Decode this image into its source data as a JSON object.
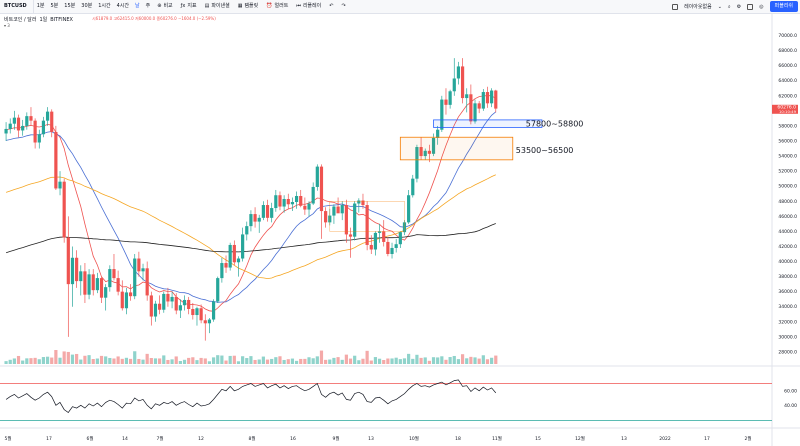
{
  "topbar": {
    "symbol": "BTCUSD",
    "timeframes": [
      "1분",
      "5분",
      "15분",
      "30분",
      "1시간",
      "4시간",
      "날",
      "주"
    ],
    "active_timeframe": "날",
    "tools": [
      "비교",
      "지표",
      "파이낸셜",
      "템플릿",
      "얼러트",
      "리플레이"
    ],
    "layout_name": "레이아웃없음",
    "publish": "퍼블리쉬"
  },
  "legend": {
    "title": "비트코인 / 달러",
    "interval": "1일",
    "exchange": "BITFINEX",
    "ohlc": "시61879.0 고62415.0 저60000.0 종60276.0 −1604.0 (−2.59%)",
    "indicator_count": "3"
  },
  "chart_data": {
    "type": "candlestick",
    "symbol": "BTCUSD",
    "last_price": "60276.0",
    "last_time": "10:10:49",
    "y_ticks": [
      70000,
      68000,
      66000,
      64000,
      62000,
      60000,
      58000,
      56000,
      54000,
      52000,
      50000,
      48000,
      46000,
      44000,
      42000,
      40000,
      38000,
      36000,
      34000,
      32000,
      30000,
      28000
    ],
    "x_ticks": [
      "5월",
      "17",
      "6월",
      "14",
      "7월",
      "12",
      "8월",
      "16",
      "9월",
      "13",
      "10월",
      "18",
      "11월",
      "15",
      "12월",
      "13",
      "2022",
      "17",
      "2월"
    ],
    "candles": [
      [
        57000,
        58500,
        56000,
        57600
      ],
      [
        57600,
        59000,
        57000,
        58300
      ],
      [
        58300,
        60000,
        57500,
        59100
      ],
      [
        59100,
        59500,
        56500,
        57400
      ],
      [
        57400,
        58800,
        56700,
        58000
      ],
      [
        58000,
        59800,
        57500,
        59300
      ],
      [
        59300,
        60500,
        58000,
        58700
      ],
      [
        58700,
        59000,
        55000,
        55800
      ],
      [
        55800,
        57500,
        55000,
        56900
      ],
      [
        56900,
        59200,
        56500,
        58700
      ],
      [
        58700,
        60500,
        58000,
        59900
      ],
      [
        59900,
        60200,
        56500,
        57200
      ],
      [
        57200,
        58000,
        49500,
        49700
      ],
      [
        49700,
        52000,
        48800,
        50600
      ],
      [
        50600,
        51000,
        42500,
        43200
      ],
      [
        43200,
        46000,
        30000,
        37000
      ],
      [
        37000,
        42000,
        34000,
        40500
      ],
      [
        40500,
        41500,
        36500,
        37400
      ],
      [
        37400,
        39500,
        35500,
        38700
      ],
      [
        38700,
        39800,
        34500,
        35600
      ],
      [
        35600,
        39000,
        35000,
        38300
      ],
      [
        38300,
        39000,
        35500,
        36200
      ],
      [
        36200,
        38500,
        35800,
        37800
      ],
      [
        37800,
        38000,
        34500,
        35200
      ],
      [
        35200,
        37000,
        33500,
        36600
      ],
      [
        36600,
        39500,
        36000,
        39000
      ],
      [
        39000,
        41000,
        37500,
        37800
      ],
      [
        37800,
        38800,
        35500,
        36000
      ],
      [
        36000,
        37500,
        33500,
        33800
      ],
      [
        33800,
        36500,
        33000,
        35900
      ],
      [
        35900,
        37000,
        34800,
        35400
      ],
      [
        35400,
        41000,
        35000,
        40400
      ],
      [
        40400,
        41300,
        38000,
        38700
      ],
      [
        38700,
        39700,
        37500,
        39100
      ],
      [
        39100,
        40000,
        34800,
        35500
      ],
      [
        35500,
        36000,
        31500,
        32700
      ],
      [
        32700,
        34800,
        32000,
        34400
      ],
      [
        34400,
        35500,
        33000,
        33600
      ],
      [
        33600,
        36000,
        33200,
        35700
      ],
      [
        35700,
        36500,
        34000,
        34700
      ],
      [
        34700,
        36000,
        33800,
        35300
      ],
      [
        35300,
        35800,
        33000,
        33500
      ],
      [
        33500,
        35000,
        32500,
        34200
      ],
      [
        34200,
        35500,
        33500,
        34900
      ],
      [
        34900,
        35300,
        33000,
        33700
      ],
      [
        33700,
        34500,
        32300,
        32900
      ],
      [
        32900,
        34000,
        31500,
        33800
      ],
      [
        33800,
        34300,
        31800,
        32200
      ],
      [
        32200,
        33000,
        29500,
        31800
      ],
      [
        31800,
        32500,
        30500,
        32300
      ],
      [
        32300,
        35000,
        32000,
        34700
      ],
      [
        34700,
        38000,
        34500,
        37800
      ],
      [
        37800,
        40500,
        37200,
        39800
      ],
      [
        39800,
        40800,
        38500,
        39200
      ],
      [
        39200,
        42500,
        38800,
        42200
      ],
      [
        42200,
        42800,
        39500,
        39900
      ],
      [
        39900,
        40700,
        38000,
        40400
      ],
      [
        40400,
        44500,
        40000,
        43600
      ],
      [
        43600,
        45300,
        42800,
        44700
      ],
      [
        44700,
        46800,
        44000,
        46300
      ],
      [
        46300,
        47200,
        44500,
        45300
      ],
      [
        45300,
        46200,
        43800,
        45800
      ],
      [
        45800,
        48000,
        45500,
        47500
      ],
      [
        47500,
        48200,
        45300,
        45800
      ],
      [
        45800,
        47800,
        45200,
        47100
      ],
      [
        47100,
        49500,
        46600,
        48800
      ],
      [
        48800,
        49300,
        46800,
        47300
      ],
      [
        47300,
        48800,
        46500,
        48300
      ],
      [
        48300,
        49000,
        47000,
        47600
      ],
      [
        47600,
        48500,
        46700,
        47900
      ],
      [
        47900,
        49300,
        47000,
        48700
      ],
      [
        48700,
        49500,
        47200,
        47400
      ],
      [
        47400,
        48500,
        46200,
        46900
      ],
      [
        46900,
        48000,
        46000,
        47700
      ],
      [
        47700,
        50500,
        47500,
        49900
      ],
      [
        49900,
        52900,
        49400,
        52600
      ],
      [
        52600,
        52900,
        43000,
        46700
      ],
      [
        46700,
        47200,
        44500,
        45200
      ],
      [
        45200,
        47000,
        44800,
        46100
      ],
      [
        46100,
        47600,
        45000,
        47300
      ],
      [
        47300,
        48500,
        46500,
        46400
      ],
      [
        46400,
        48000,
        45500,
        47500
      ],
      [
        47500,
        48200,
        42500,
        43600
      ],
      [
        43600,
        44500,
        40500,
        43300
      ],
      [
        43300,
        48000,
        42800,
        47700
      ],
      [
        47700,
        48400,
        46500,
        48100
      ],
      [
        48100,
        49000,
        47000,
        47500
      ],
      [
        47500,
        48000,
        41500,
        42200
      ],
      [
        42200,
        43500,
        41000,
        41600
      ],
      [
        41600,
        44000,
        40800,
        43800
      ],
      [
        43800,
        45000,
        42500,
        44000
      ],
      [
        44000,
        45500,
        42000,
        42600
      ],
      [
        42600,
        43200,
        40700,
        41000
      ],
      [
        41000,
        42500,
        40400,
        41800
      ],
      [
        41800,
        43000,
        41200,
        42300
      ],
      [
        42300,
        44000,
        41800,
        43900
      ],
      [
        43900,
        45500,
        43500,
        45200
      ],
      [
        45200,
        49500,
        45000,
        48800
      ],
      [
        48800,
        51500,
        48500,
        51000
      ],
      [
        51000,
        55500,
        50500,
        55200
      ],
      [
        55200,
        56500,
        53500,
        54000
      ],
      [
        54000,
        55000,
        53500,
        54700
      ],
      [
        54700,
        55500,
        53200,
        54300
      ],
      [
        54300,
        57000,
        54000,
        56400
      ],
      [
        56400,
        58000,
        55500,
        57500
      ],
      [
        57500,
        62000,
        57200,
        61500
      ],
      [
        61500,
        63000,
        59500,
        60800
      ],
      [
        60800,
        62800,
        60300,
        62600
      ],
      [
        62600,
        67000,
        62000,
        64300
      ],
      [
        64300,
        66500,
        63500,
        65900
      ],
      [
        65900,
        67000,
        61000,
        61700
      ],
      [
        61700,
        63000,
        59800,
        62200
      ],
      [
        62200,
        63500,
        58200,
        58600
      ],
      [
        58600,
        61500,
        58300,
        61000
      ],
      [
        61000,
        61300,
        59700,
        60300
      ],
      [
        60300,
        62900,
        60000,
        62500
      ],
      [
        62500,
        63200,
        60400,
        61000
      ],
      [
        61000,
        63000,
        60500,
        62700
      ],
      [
        62700,
        62800,
        59800,
        60300
      ]
    ],
    "moving_averages": [
      {
        "color": "#ef5350",
        "period": 10
      },
      {
        "color": "#4a6fd4",
        "period": 20
      },
      {
        "color": "#f5a623",
        "period": 50
      },
      {
        "color": "#222222",
        "period": 100
      }
    ],
    "volume_colors": {
      "up": "#8fd3cb",
      "down": "#f4a9a8"
    },
    "oscillator": {
      "upper_band": 70,
      "lower_band": 30,
      "y_ticks": [
        "60.00",
        "40.00"
      ],
      "values": [
        48,
        52,
        55,
        50,
        53,
        56,
        51,
        47,
        50,
        55,
        58,
        52,
        40,
        44,
        34,
        30,
        38,
        36,
        40,
        36,
        42,
        39,
        43,
        38,
        44,
        47,
        45,
        41,
        36,
        43,
        42,
        50,
        46,
        48,
        40,
        35,
        42,
        40,
        44,
        42,
        45,
        40,
        43,
        45,
        41,
        38,
        43,
        39,
        40,
        42,
        48,
        55,
        62,
        60,
        66,
        60,
        62,
        66,
        68,
        70,
        66,
        68,
        70,
        64,
        67,
        69,
        64,
        67,
        63,
        66,
        67,
        63,
        60,
        62,
        66,
        70,
        55,
        51,
        56,
        58,
        54,
        57,
        48,
        47,
        56,
        58,
        55,
        45,
        44,
        50,
        51,
        47,
        42,
        46,
        48,
        52,
        56,
        62,
        67,
        70,
        66,
        67,
        65,
        68,
        70,
        72,
        68,
        71,
        74,
        75,
        66,
        67,
        59,
        64,
        60,
        65,
        61,
        64,
        57
      ]
    },
    "annotations": [
      {
        "label": "57800~58800",
        "low": 57800,
        "high": 58800,
        "color": "#2962ff"
      },
      {
        "label": "53500~56500",
        "low": 53500,
        "high": 56500,
        "color": "#f57c00"
      }
    ]
  }
}
